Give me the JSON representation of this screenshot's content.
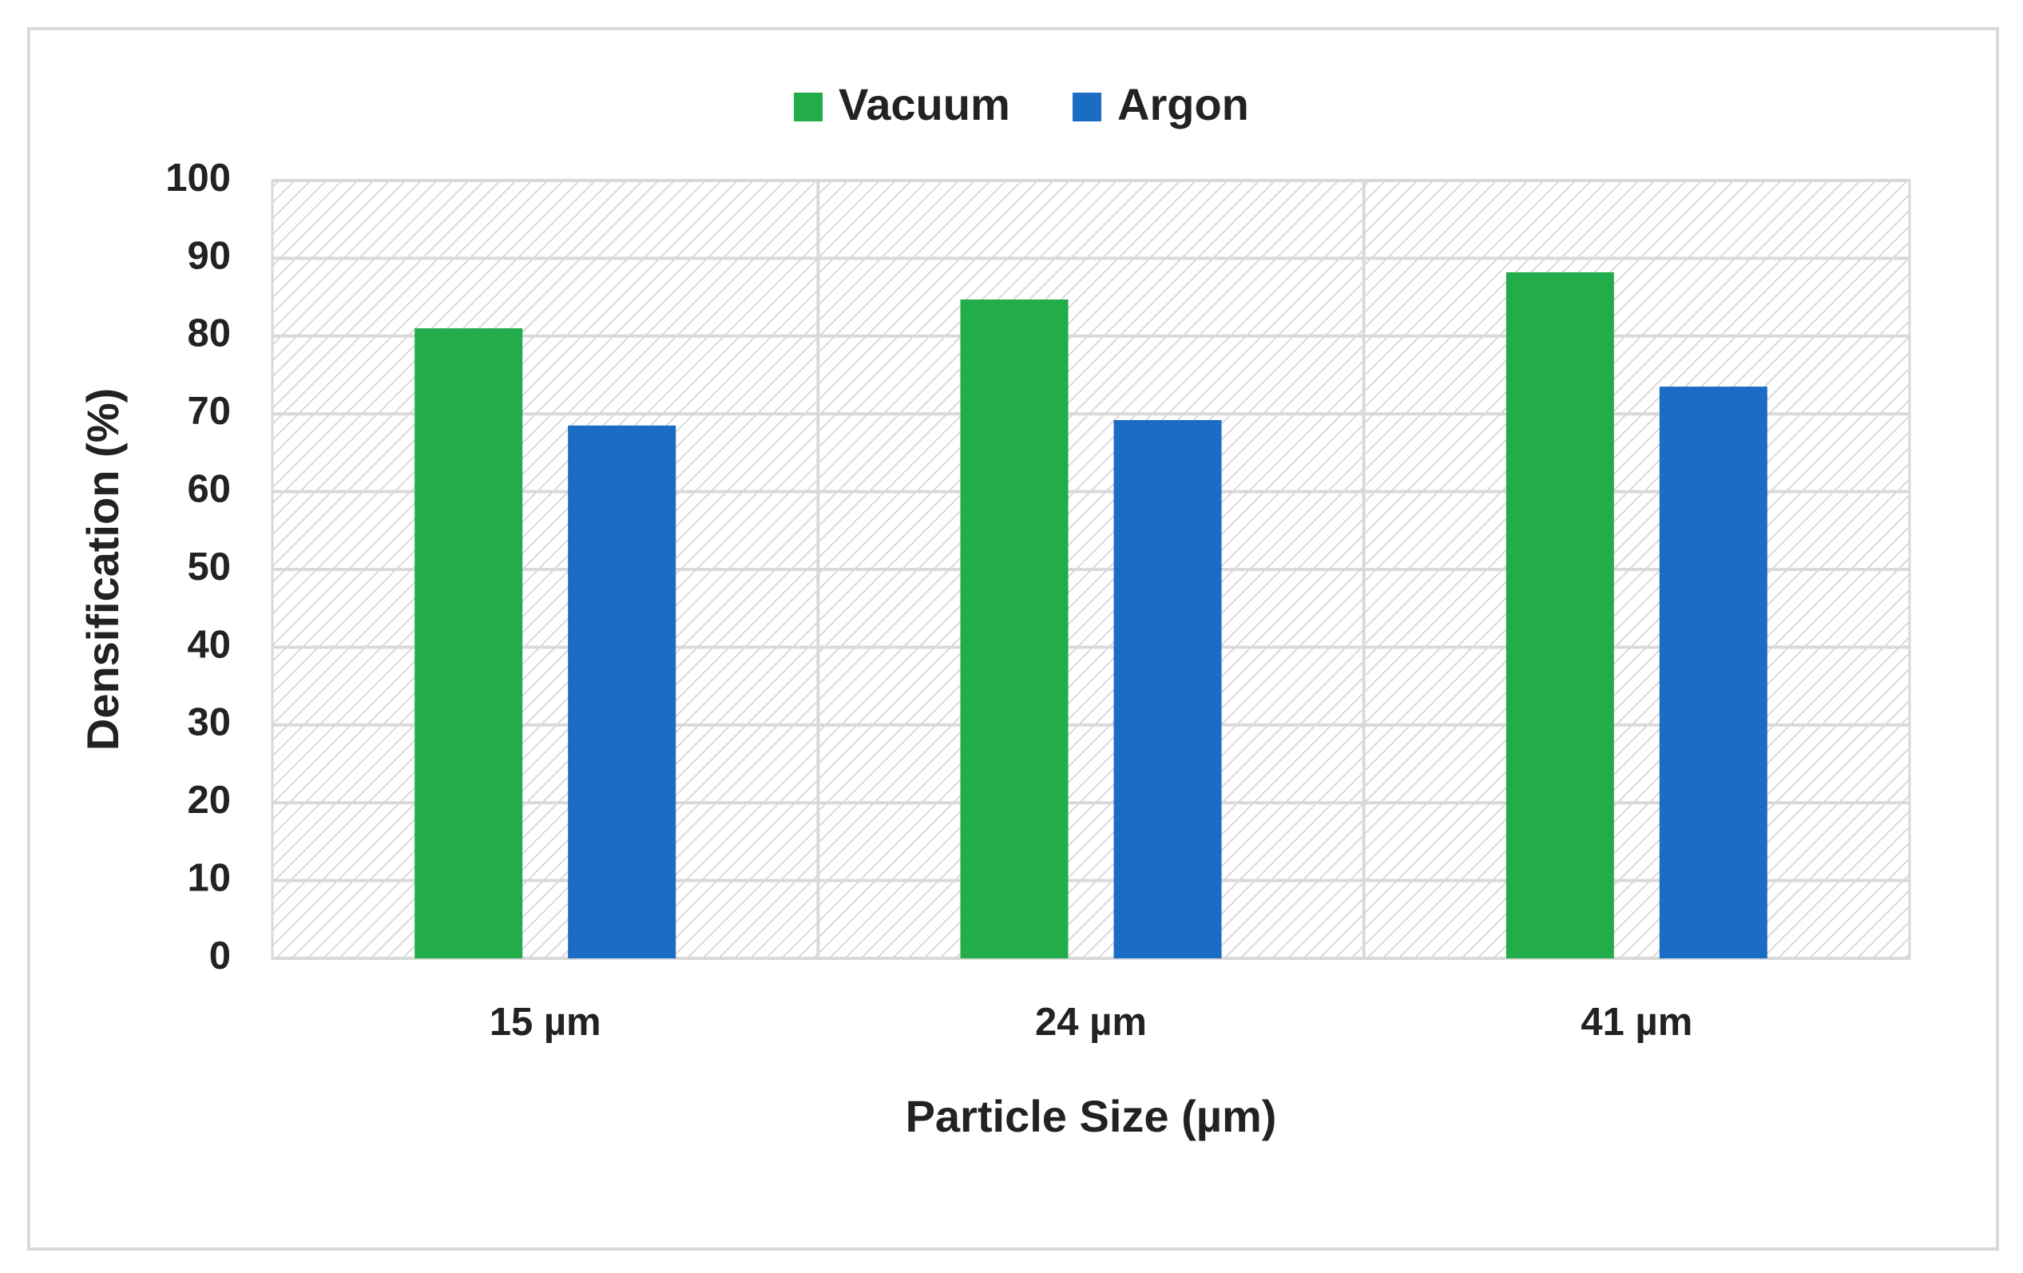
{
  "chart_data": {
    "type": "bar",
    "x_label": "Particle Size (µm)",
    "y_label": "Densification (%)",
    "categories": [
      "15 µm",
      "24 µm",
      "41 µm"
    ],
    "series": [
      {
        "name": "Vacuum",
        "color": "#22ac4a",
        "values": [
          81,
          84.7,
          88.2
        ]
      },
      {
        "name": "Argon",
        "color": "#1a6cc4",
        "values": [
          68.5,
          69.2,
          73.5
        ]
      }
    ],
    "ylim": [
      0,
      100
    ],
    "yticks": [
      0,
      10,
      20,
      30,
      40,
      50,
      60,
      70,
      80,
      90,
      100
    ],
    "grid": true,
    "legend": "top"
  }
}
